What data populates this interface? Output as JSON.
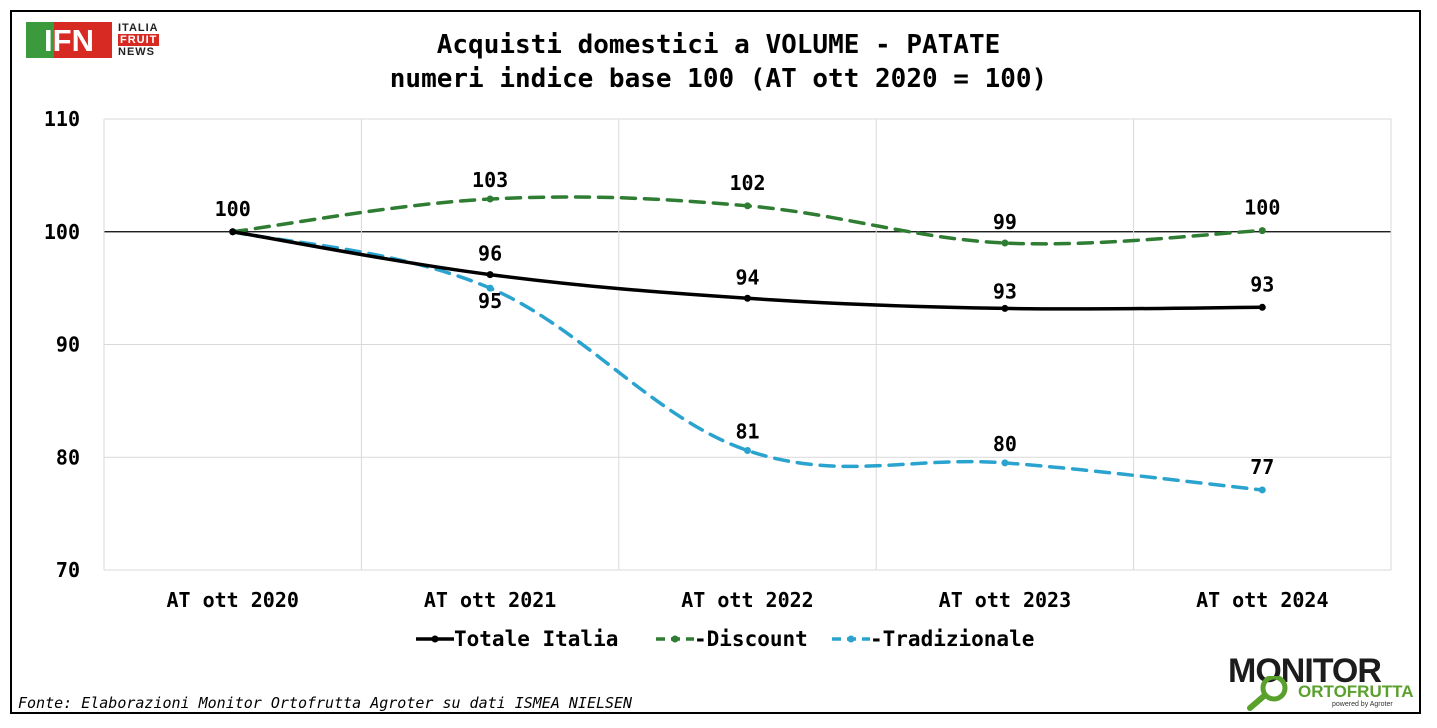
{
  "logo": {
    "letters": "IFN",
    "line1": "ITALIA",
    "line2": "FRUIT",
    "line3": "NEWS"
  },
  "title_line1": "Acquisti domestici a VOLUME - PATATE",
  "title_line2": "numeri indice base 100 (AT ott 2020 = 100)",
  "source": "Fonte: Elaborazioni Monitor Ortofrutta Agroter su dati ISMEA NIELSEN",
  "brand": {
    "name1": "MONITOR",
    "name2": "ORTOFRUTTA",
    "tagline": "powered by Agroter"
  },
  "chart_data": {
    "type": "line",
    "title": "Acquisti domestici a VOLUME - PATATE",
    "subtitle": "numeri indice base 100 (AT ott 2020 = 100)",
    "categories": [
      "AT ott 2020",
      "AT ott 2021",
      "AT ott 2022",
      "AT ott 2023",
      "AT ott 2024"
    ],
    "ylim": [
      70,
      110
    ],
    "yticks": [
      70,
      80,
      90,
      100,
      110
    ],
    "grid": true,
    "reference_line": 100,
    "legend_position": "bottom",
    "series": [
      {
        "name": "Totale Italia",
        "color": "#000000",
        "dash": "solid",
        "values": [
          100,
          96.2,
          94.1,
          93.2,
          93.3
        ],
        "labels": [
          "",
          "96",
          "94",
          "93",
          "93"
        ]
      },
      {
        "name": "Discount",
        "color": "#2e7d32",
        "dash": "dashed",
        "values": [
          100,
          102.9,
          102.3,
          99.0,
          100.1
        ],
        "labels": [
          "100",
          "103",
          "102",
          "99",
          "100"
        ]
      },
      {
        "name": "Tradizionale",
        "color": "#2ba3cf",
        "dash": "dashed",
        "values": [
          100,
          95.0,
          80.6,
          79.5,
          77.1
        ],
        "labels": [
          "",
          "95",
          "81",
          "80",
          "77"
        ]
      }
    ]
  }
}
